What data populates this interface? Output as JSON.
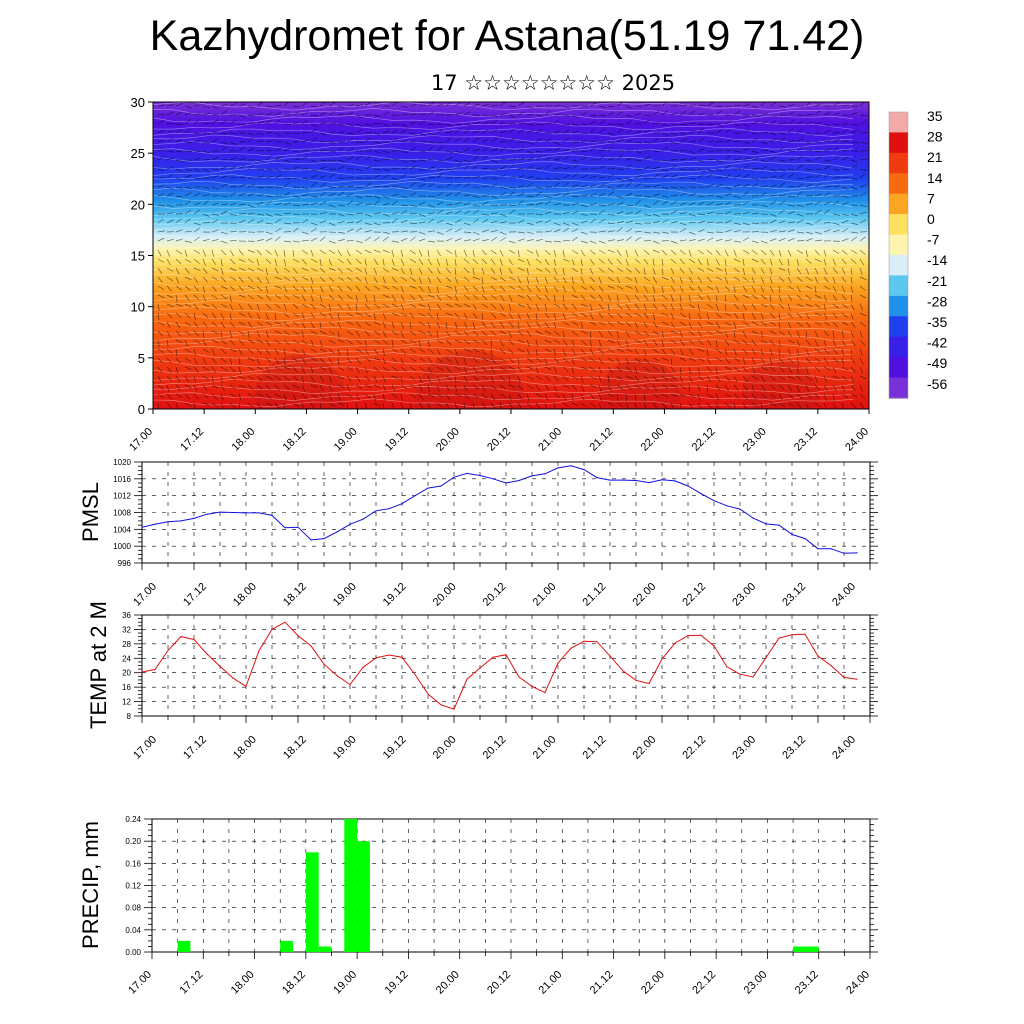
{
  "header": {
    "title": "Kazhydromet for Astana(51.19 71.42)",
    "subtitle": "17 ☆☆☆☆☆☆☆☆ 2025"
  },
  "time_axis": {
    "tick_labels": [
      "17.00",
      "17.12",
      "18.00",
      "18.12",
      "19.00",
      "19.12",
      "20.00",
      "20.12",
      "21.00",
      "21.12",
      "22.00",
      "22.12",
      "23.00",
      "23.12",
      "24.00"
    ]
  },
  "chart_data": [
    {
      "id": "cross_section",
      "type": "heatmap",
      "title": "",
      "xlabel": "",
      "ylabel": "",
      "ylim": [
        0,
        30
      ],
      "y_ticks": [
        0,
        5,
        10,
        15,
        20,
        25,
        30
      ],
      "x_categories": [
        "17.00",
        "17.12",
        "18.00",
        "18.12",
        "19.00",
        "19.12",
        "20.00",
        "20.12",
        "21.00",
        "21.12",
        "22.00",
        "22.12",
        "23.00",
        "23.12",
        "24.00"
      ],
      "colorbar": {
        "labels": [
          "35",
          "28",
          "21",
          "14",
          "7",
          "0",
          "-7",
          "-14",
          "-21",
          "-28",
          "-35",
          "-42",
          "-49",
          "-56"
        ],
        "colors": [
          "#f4a9a9",
          "#e01010",
          "#f03a10",
          "#f86a10",
          "#fca520",
          "#fde060",
          "#fdf4b0",
          "#d9eef8",
          "#5cc8f0",
          "#2090e8",
          "#2040f0",
          "#3820e8",
          "#5010e0",
          "#7a30d8"
        ]
      },
      "overlay": "wind barbs and contour lines"
    },
    {
      "id": "pmsl",
      "type": "line",
      "ylabel": "PMSL",
      "ylim": [
        996,
        1020
      ],
      "y_ticks": [
        996,
        1000,
        1004,
        1008,
        1012,
        1016,
        1020
      ],
      "x_range": [
        0,
        168
      ],
      "line_color": "#1010e0",
      "series": [
        {
          "x": [
            0,
            3,
            6,
            9,
            12,
            15,
            18,
            21,
            24,
            27,
            30,
            33,
            36,
            39,
            42,
            45,
            48,
            51,
            54,
            57,
            60,
            63,
            66,
            69,
            72,
            75,
            78,
            81,
            84,
            87,
            90,
            93,
            96,
            99,
            102,
            105,
            108,
            111,
            114,
            117,
            120,
            123,
            126,
            129,
            132,
            135,
            138,
            141,
            144,
            147,
            150,
            153,
            156,
            159,
            162,
            165
          ],
          "values": [
            1004.5,
            1005.2,
            1005.8,
            1006.0,
            1006.6,
            1007.6,
            1008.1,
            1008.0,
            1007.9,
            1007.9,
            1007.3,
            1004.4,
            1004.5,
            1001.5,
            1001.8,
            1003.4,
            1005.2,
            1006.4,
            1008.4,
            1008.9,
            1010.1,
            1012.0,
            1013.8,
            1014.3,
            1016.4,
            1017.3,
            1016.8,
            1016.0,
            1015.0,
            1015.6,
            1016.7,
            1017.2,
            1018.6,
            1019.1,
            1018.2,
            1016.3,
            1015.7,
            1015.7,
            1015.6,
            1015.1,
            1015.8,
            1015.5,
            1014.3,
            1012.5,
            1010.8,
            1009.6,
            1008.8,
            1006.7,
            1005.3,
            1005.0,
            1002.8,
            1001.8,
            999.4,
            999.4,
            998.3,
            998.4
          ]
        }
      ]
    },
    {
      "id": "t2m",
      "type": "line",
      "ylabel": "TEMP at 2 M",
      "ylim": [
        8,
        36
      ],
      "y_ticks": [
        8,
        12,
        16,
        20,
        24,
        28,
        32,
        36
      ],
      "x_range": [
        0,
        168
      ],
      "line_color": "#e01010",
      "series": [
        {
          "x": [
            0,
            3,
            6,
            9,
            12,
            15,
            18,
            21,
            24,
            27,
            30,
            33,
            36,
            39,
            42,
            45,
            48,
            51,
            54,
            57,
            60,
            63,
            66,
            69,
            72,
            75,
            78,
            81,
            84,
            87,
            90,
            93,
            96,
            99,
            102,
            105,
            108,
            111,
            114,
            117,
            120,
            123,
            126,
            129,
            132,
            135,
            138,
            141,
            144,
            147,
            150,
            153,
            156,
            159,
            162,
            165
          ],
          "values": [
            20.2,
            20.9,
            26.2,
            30.0,
            29.2,
            25.2,
            21.8,
            18.5,
            16.2,
            26.1,
            32.0,
            34.0,
            30.3,
            27.4,
            22.4,
            19.2,
            16.7,
            21.5,
            24.1,
            24.9,
            24.3,
            19.5,
            14.1,
            11.1,
            9.9,
            18.2,
            21.3,
            24.3,
            25.0,
            18.8,
            16.2,
            14.5,
            22.7,
            26.8,
            28.7,
            28.6,
            24.6,
            20.5,
            17.9,
            17.0,
            23.8,
            28.2,
            30.3,
            30.4,
            27.4,
            21.6,
            19.6,
            18.8,
            24.2,
            29.6,
            30.5,
            30.7,
            24.6,
            22.0,
            18.7,
            18.2
          ]
        }
      ]
    },
    {
      "id": "precip",
      "type": "bar",
      "ylabel": "PRECIP, mm",
      "ylim": [
        0,
        0.24
      ],
      "y_ticks": [
        "0.00",
        "0.04",
        "0.08",
        "0.12",
        "0.16",
        "0.20",
        "0.24"
      ],
      "x_range": [
        0,
        168
      ],
      "bar_color": "#00ff00",
      "series": [
        {
          "x_start": [
            6,
            30,
            36,
            39,
            45,
            48,
            150,
            153
          ],
          "values": [
            0.02,
            0.02,
            0.18,
            0.01,
            0.24,
            0.2,
            0.01,
            0.01
          ]
        }
      ]
    }
  ]
}
